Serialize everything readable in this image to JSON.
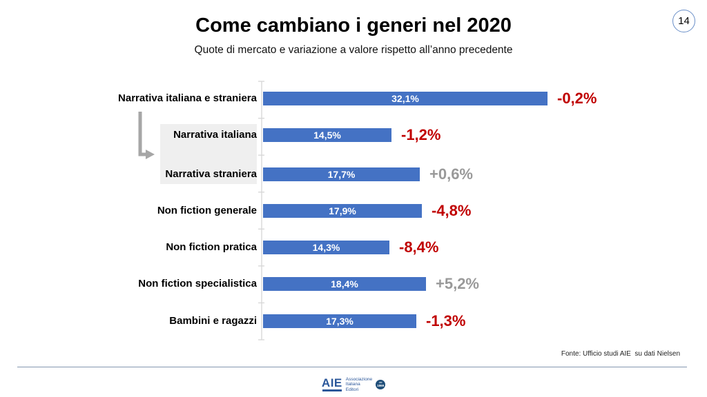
{
  "slide": {
    "title": "Come cambiano i generi nel 2020",
    "subtitle": "Quote di mercato e variazione a valore rispetto all’anno precedente",
    "page_number": "14",
    "source": "Fonte: Ufficio studi AIE  su dati Nielsen"
  },
  "logo": {
    "acronym": "AIE",
    "line1": "Associazione",
    "line2": "Italiana",
    "line3": "Editori",
    "badge_top": "dal",
    "badge_year": "1869"
  },
  "colors": {
    "bar": "#4472c4",
    "negative_text": "#c00000",
    "positive_text": "#999999",
    "axis": "#d6d6d6",
    "divider": "#8496b0",
    "label_background": "#efefef",
    "arrow": "#a6a6a6",
    "logo_blue": "#2b579a"
  },
  "chart_data": {
    "type": "bar",
    "orientation": "horizontal",
    "title": "Come cambiano i generi nel 2020",
    "subtitle": "Quote di mercato e variazione a valore rispetto all’anno precedente",
    "value_unit": "%",
    "xlim": [
      0,
      32.5
    ],
    "grid": false,
    "legend": false,
    "categories": [
      "Narrativa italiana e straniera",
      "Narrativa italiana",
      "Narrativa straniera",
      "Non fiction generale",
      "Non fiction pratica",
      "Non fiction specialistica",
      "Bambini e ragazzi"
    ],
    "series": [
      {
        "name": "Quota di mercato 2020",
        "values": [
          32.1,
          14.5,
          17.7,
          17.9,
          14.3,
          18.4,
          17.3
        ]
      },
      {
        "name": "Variazione a valore rispetto all’anno precedente",
        "values": [
          -0.2,
          -1.2,
          0.6,
          -4.8,
          -8.4,
          5.2,
          -1.3
        ]
      }
    ],
    "rows": [
      {
        "label": "Narrativa italiana e straniera",
        "share_label": "32,1%",
        "share_value": 32.1,
        "change_label": "-0,2%",
        "change_value": -0.2,
        "sub_item": false
      },
      {
        "label": "Narrativa italiana",
        "share_label": "14,5%",
        "share_value": 14.5,
        "change_label": "-1,2%",
        "change_value": -1.2,
        "sub_item": true
      },
      {
        "label": "Narrativa straniera",
        "share_label": "17,7%",
        "share_value": 17.7,
        "change_label": "+0,6%",
        "change_value": 0.6,
        "sub_item": true
      },
      {
        "label": "Non fiction generale",
        "share_label": "17,9%",
        "share_value": 17.9,
        "change_label": "-4,8%",
        "change_value": -4.8,
        "sub_item": false
      },
      {
        "label": "Non fiction pratica",
        "share_label": "14,3%",
        "share_value": 14.3,
        "change_label": "-8,4%",
        "change_value": -8.4,
        "sub_item": false
      },
      {
        "label": "Non fiction specialistica",
        "share_label": "18,4%",
        "share_value": 18.4,
        "change_label": "+5,2%",
        "change_value": 5.2,
        "sub_item": false
      },
      {
        "label": "Bambini e ragazzi",
        "share_label": "17,3%",
        "share_value": 17.3,
        "change_label": "-1,3%",
        "change_value": -1.3,
        "sub_item": false
      }
    ]
  }
}
